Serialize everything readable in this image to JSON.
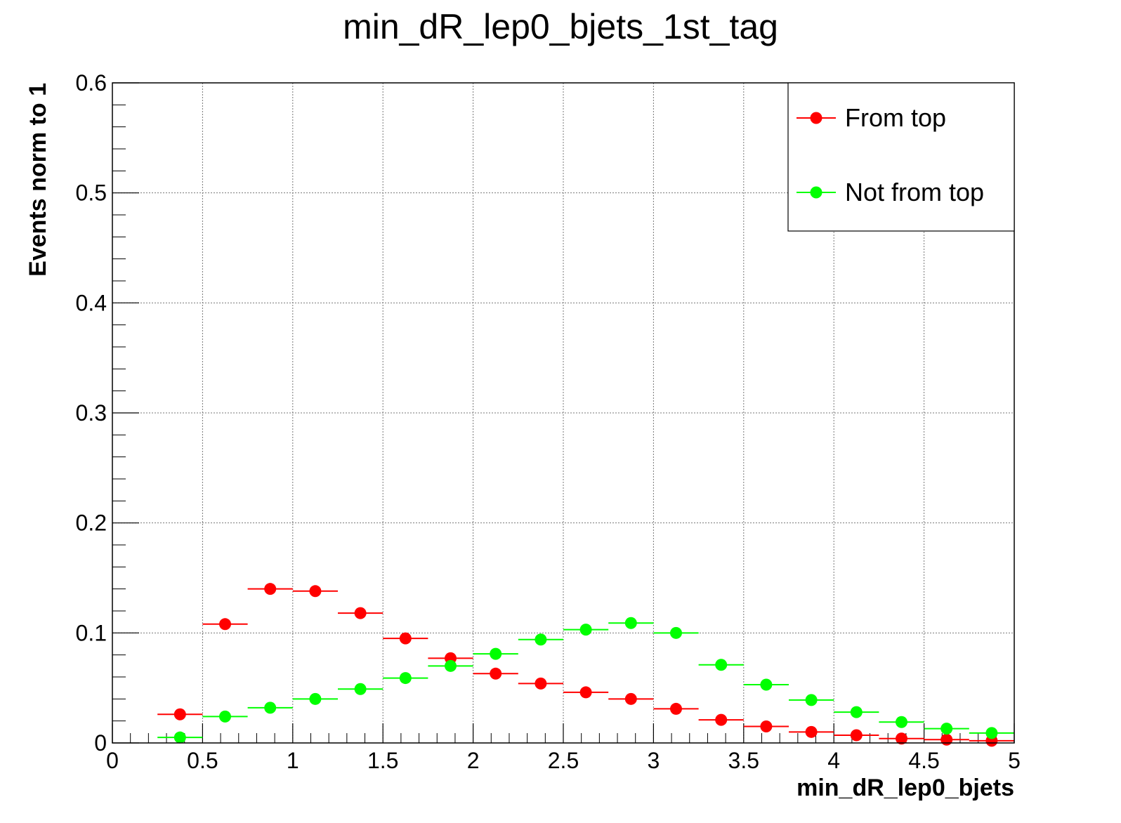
{
  "chart_data": {
    "type": "scatter",
    "title": "min_dR_lep0_bjets_1st_tag",
    "xlabel": "min_dR_lep0_bjets",
    "ylabel": "Events norm to 1",
    "xlim": [
      0,
      5
    ],
    "ylim": [
      0,
      0.6
    ],
    "grid": true,
    "legend_position": "top-right",
    "x_ticks": [
      "0",
      "0.5",
      "1",
      "1.5",
      "2",
      "2.5",
      "3",
      "3.5",
      "4",
      "4.5",
      "5"
    ],
    "y_ticks": [
      "0",
      "0.1",
      "0.2",
      "0.3",
      "0.4",
      "0.5",
      "0.6"
    ],
    "bin_width": 0.25,
    "x": [
      0.375,
      0.625,
      0.875,
      1.125,
      1.375,
      1.625,
      1.875,
      2.125,
      2.375,
      2.625,
      2.875,
      3.125,
      3.375,
      3.625,
      3.875,
      4.125,
      4.375,
      4.625,
      4.875
    ],
    "series": [
      {
        "name": "From top",
        "color": "#ff0000",
        "values": [
          0.026,
          0.108,
          0.14,
          0.138,
          0.118,
          0.095,
          0.077,
          0.063,
          0.054,
          0.046,
          0.04,
          0.031,
          0.021,
          0.015,
          0.01,
          0.007,
          0.004,
          0.003,
          0.002
        ]
      },
      {
        "name": "Not from top",
        "color": "#00ff00",
        "values": [
          0.005,
          0.024,
          0.032,
          0.04,
          0.049,
          0.059,
          0.07,
          0.081,
          0.094,
          0.103,
          0.109,
          0.1,
          0.071,
          0.053,
          0.039,
          0.028,
          0.019,
          0.013,
          0.009
        ]
      }
    ]
  }
}
